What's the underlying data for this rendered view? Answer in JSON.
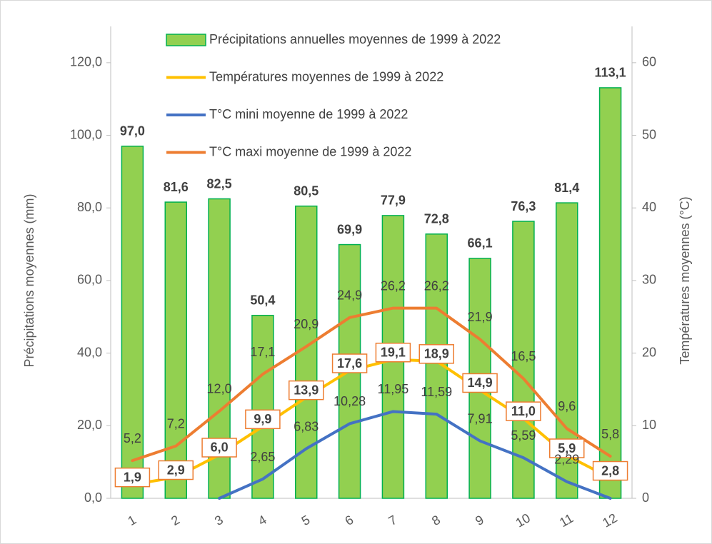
{
  "chart_data": {
    "type": "bar",
    "categories": [
      "1",
      "2",
      "3",
      "4",
      "5",
      "6",
      "7",
      "8",
      "9",
      "10",
      "11",
      "12"
    ],
    "ylabel": "Précipitations moyennes (mm)",
    "y2label": "Températures moyennes (°C)",
    "ylim": [
      0,
      130
    ],
    "yticks": [
      {
        "value": 0,
        "label": "0,0"
      },
      {
        "value": 20,
        "label": "20,0"
      },
      {
        "value": 40,
        "label": "40,0"
      },
      {
        "value": 60,
        "label": "60,0"
      },
      {
        "value": 80,
        "label": "80,0"
      },
      {
        "value": 100,
        "label": "100,0"
      },
      {
        "value": 120,
        "label": "120,0"
      }
    ],
    "y2lim": [
      0,
      65
    ],
    "y2ticks": [
      0,
      10,
      20,
      30,
      40,
      50,
      60
    ],
    "series": [
      {
        "name": "Précipitations annuelles moyennes de 1999 à 2022",
        "type": "bar",
        "color": "#92D050",
        "edge": "#00B050",
        "values": [
          97.0,
          81.6,
          82.5,
          50.4,
          80.5,
          69.9,
          77.9,
          72.8,
          66.1,
          76.3,
          81.4,
          113.1
        ],
        "value_labels": [
          "97,0",
          "81,6",
          "82,5",
          "50,4",
          "80,5",
          "69,9",
          "77,9",
          "72,8",
          "66,1",
          "76,3",
          "81,4",
          "113,1"
        ]
      },
      {
        "name": "Températures moyennes de 1999 à 2022",
        "type": "line",
        "axis": "y2",
        "color": "#FFC000",
        "label_style": "boxed",
        "values": [
          1.9,
          2.9,
          6.0,
          9.9,
          13.9,
          17.6,
          19.1,
          18.9,
          14.9,
          11.0,
          5.9,
          2.8
        ],
        "value_labels": [
          "1,9",
          "2,9",
          "6,0",
          "9,9",
          "13,9",
          "17,6",
          "19,1",
          "18,9",
          "14,9",
          "11,0",
          "5,9",
          "2,8"
        ]
      },
      {
        "name": "T°C mini moyenne de 1999 à 2022",
        "type": "line",
        "axis": "y2",
        "color": "#4472C4",
        "label_style": "plain",
        "values": [
          null,
          null,
          0,
          2.65,
          6.83,
          10.28,
          11.95,
          11.59,
          7.91,
          5.59,
          2.29,
          0
        ],
        "value_labels": [
          null,
          null,
          null,
          "2,65",
          "6,83",
          "10,28",
          "11,95",
          "11,59",
          "7,91",
          "5,59",
          "2,29",
          null
        ]
      },
      {
        "name": "T°C maxi moyenne de 1999 à 2022",
        "type": "line",
        "axis": "y2",
        "color": "#ED7D31",
        "label_style": "plain",
        "values": [
          5.2,
          7.2,
          12.0,
          17.1,
          20.9,
          24.9,
          26.2,
          26.2,
          21.9,
          16.5,
          9.6,
          5.8
        ],
        "value_labels": [
          "5,2",
          "7,2",
          "12,0",
          "17,1",
          "20,9",
          "24,9",
          "26,2",
          "26,2",
          "21,9",
          "16,5",
          "9,6",
          "5,8"
        ]
      }
    ]
  }
}
